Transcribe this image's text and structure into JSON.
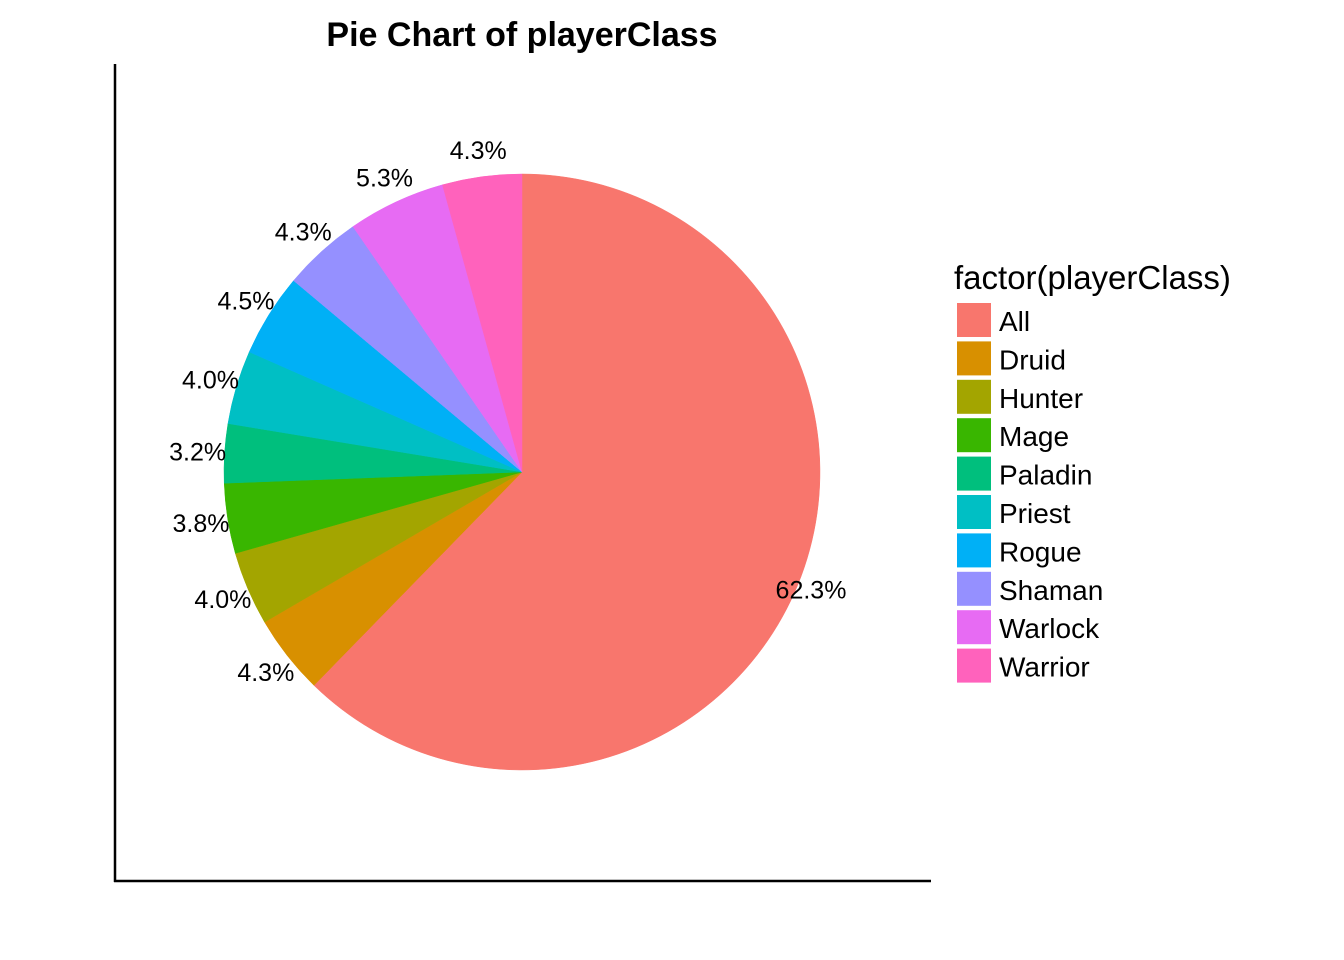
{
  "chart_data": {
    "type": "pie",
    "title": "Pie Chart of playerClass",
    "legend_title": "factor(playerClass)",
    "legend_position": "right",
    "grid": false,
    "start": "12 o'clock",
    "direction": "clockwise",
    "slices": [
      {
        "label": "All",
        "value": 62.3,
        "text": "62.3%",
        "color": "#F8766D"
      },
      {
        "label": "Druid",
        "value": 4.3,
        "text": "4.3%",
        "color": "#D89000"
      },
      {
        "label": "Hunter",
        "value": 4.0,
        "text": "4.0%",
        "color": "#A3A500"
      },
      {
        "label": "Mage",
        "value": 3.8,
        "text": "3.8%",
        "color": "#39B600"
      },
      {
        "label": "Paladin",
        "value": 3.2,
        "text": "3.2%",
        "color": "#00BF7D"
      },
      {
        "label": "Priest",
        "value": 4.0,
        "text": "4.0%",
        "color": "#00BFC4"
      },
      {
        "label": "Rogue",
        "value": 4.5,
        "text": "4.5%",
        "color": "#00B0F6"
      },
      {
        "label": "Shaman",
        "value": 4.3,
        "text": "4.3%",
        "color": "#9590FF"
      },
      {
        "label": "Warlock",
        "value": 5.3,
        "text": "5.3%",
        "color": "#E76BF3"
      },
      {
        "label": "Warrior",
        "value": 4.3,
        "text": "4.3%",
        "color": "#FF62BC"
      }
    ]
  }
}
